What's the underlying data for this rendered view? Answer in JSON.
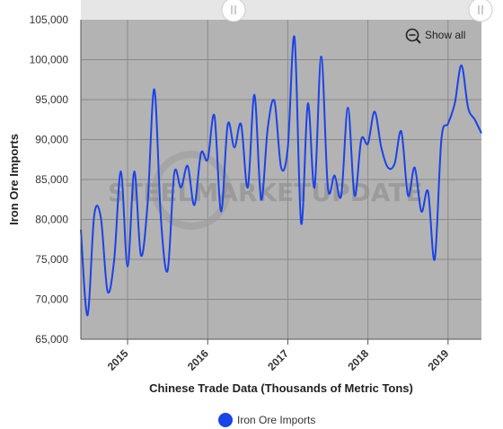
{
  "chart_data": {
    "type": "line",
    "title": "",
    "xlabel": "Chinese Trade Data (Thousands of Metric Tons)",
    "ylabel": "Iron Ore Imports",
    "x_tick_labels": [
      "2015",
      "2016",
      "2017",
      "2018",
      "2019"
    ],
    "y_tick_labels": [
      "65,000",
      "70,000",
      "75,000",
      "80,000",
      "85,000",
      "90,000",
      "95,000",
      "100,000",
      "105,000"
    ],
    "ylim": [
      65000,
      105000
    ],
    "xlim": [
      "2014-06",
      "2019-06"
    ],
    "grid": true,
    "legend_position": "bottom-center",
    "series": [
      {
        "name": "Iron Ore Imports",
        "color": "#1a43e8",
        "x": [
          "2014-06",
          "2014-07",
          "2014-08",
          "2014-09",
          "2014-10",
          "2014-11",
          "2014-12",
          "2015-01",
          "2015-02",
          "2015-03",
          "2015-04",
          "2015-05",
          "2015-06",
          "2015-07",
          "2015-08",
          "2015-09",
          "2015-10",
          "2015-11",
          "2015-12",
          "2016-01",
          "2016-02",
          "2016-03",
          "2016-04",
          "2016-05",
          "2016-06",
          "2016-07",
          "2016-08",
          "2016-09",
          "2016-10",
          "2016-11",
          "2016-12",
          "2017-01",
          "2017-02",
          "2017-03",
          "2017-04",
          "2017-05",
          "2017-06",
          "2017-07",
          "2017-08",
          "2017-09",
          "2017-10",
          "2017-11",
          "2017-12",
          "2018-01",
          "2018-02",
          "2018-03",
          "2018-04",
          "2018-05",
          "2018-06",
          "2018-07",
          "2018-08",
          "2018-09",
          "2018-10",
          "2018-11",
          "2018-12",
          "2019-01",
          "2019-02",
          "2019-03",
          "2019-04",
          "2019-05",
          "2019-06"
        ],
        "values": [
          78700,
          68000,
          80500,
          80200,
          71000,
          75000,
          86000,
          74100,
          86000,
          75500,
          82000,
          96300,
          80000,
          73600,
          85800,
          84000,
          86700,
          81800,
          88300,
          87500,
          93000,
          81000,
          91900,
          89000,
          91900,
          84000,
          95600,
          82500,
          91500,
          94800,
          86500,
          89000,
          102800,
          79500,
          94500,
          84000,
          100400,
          84000,
          85500,
          83000,
          94000,
          83000,
          90000,
          89500,
          93500,
          89000,
          86500,
          87000,
          91000,
          83000,
          86500,
          81000,
          83500,
          75000,
          90000,
          92000,
          94500,
          99300,
          94000,
          92500,
          90800
        ]
      }
    ],
    "watermark": "STEELMARKETUPDATE",
    "controls": {
      "show_all_label": "Show all",
      "zoom_icon": "zoom-out-icon",
      "slider_left_icon": "grip-handle-icon",
      "slider_right_icon": "grip-handle-icon"
    },
    "colors": {
      "plot_background": "#b3b3b3",
      "gridline": "#8a8a8a",
      "line": "#1a43e8",
      "navigator_band": "#e6e6e6"
    }
  }
}
